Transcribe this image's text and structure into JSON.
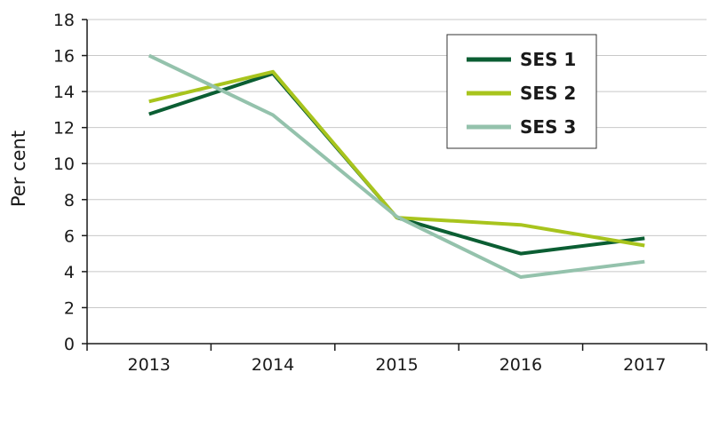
{
  "chart_data": {
    "type": "line",
    "categories": [
      "2013",
      "2014",
      "2015",
      "2016",
      "2017"
    ],
    "series": [
      {
        "name": "SES 1",
        "color": "#0b5e33",
        "values": [
          12.75,
          15.0,
          7.0,
          5.0,
          5.85
        ]
      },
      {
        "name": "SES 2",
        "color": "#a8c41d",
        "values": [
          13.45,
          15.1,
          7.0,
          6.6,
          5.45
        ]
      },
      {
        "name": "SES 3",
        "color": "#94c2ac",
        "values": [
          16.0,
          12.7,
          7.05,
          3.7,
          4.55
        ]
      }
    ],
    "ylabel": "Per cent",
    "ylim": [
      0,
      18
    ],
    "yticks": [
      0,
      2,
      4,
      6,
      8,
      10,
      12,
      14,
      16,
      18
    ],
    "grid": true,
    "gridline_color": "#c8c8c8",
    "legend_position": "top-right"
  }
}
